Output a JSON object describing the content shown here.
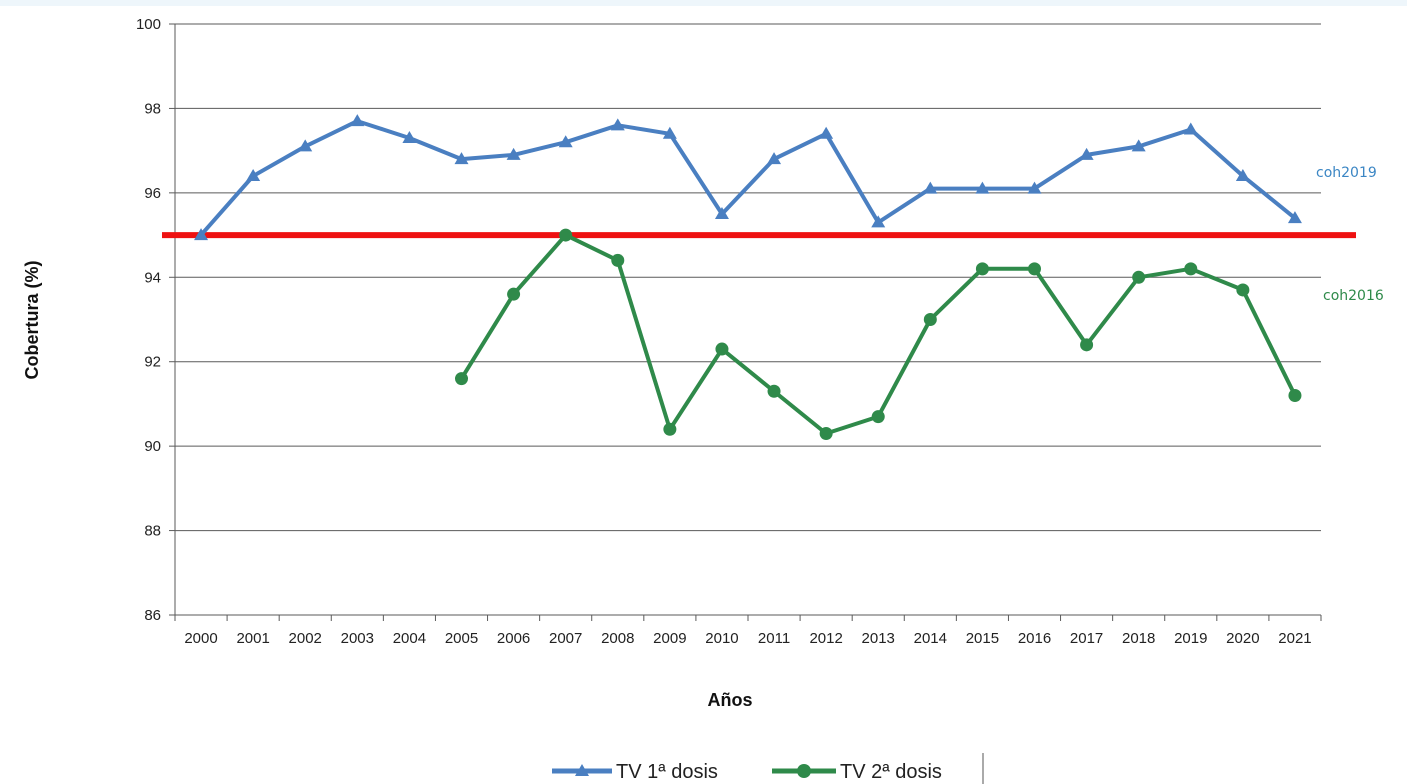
{
  "chart_data": {
    "type": "line",
    "xlabel": "Años",
    "ylabel": "Cobertura (%)",
    "ylim": [
      86,
      100
    ],
    "yticks": [
      86,
      88,
      90,
      92,
      94,
      96,
      98,
      100
    ],
    "categories": [
      "2000",
      "2001",
      "2002",
      "2003",
      "2004",
      "2005",
      "2006",
      "2007",
      "2008",
      "2009",
      "2010",
      "2011",
      "2012",
      "2013",
      "2014",
      "2015",
      "2016",
      "2017",
      "2018",
      "2019",
      "2020",
      "2021"
    ],
    "series": [
      {
        "name": "TV 1ª dosis",
        "color": "#4a7fc1",
        "marker": "triangle",
        "values": [
          95.0,
          96.4,
          97.1,
          97.7,
          97.3,
          96.8,
          96.9,
          97.2,
          97.6,
          97.4,
          95.5,
          96.8,
          97.4,
          95.3,
          96.1,
          96.1,
          96.1,
          96.9,
          97.1,
          97.5,
          96.4,
          95.4
        ]
      },
      {
        "name": "TV 2ª dosis",
        "color": "#2f8a4a",
        "marker": "circle",
        "values": [
          null,
          null,
          null,
          null,
          null,
          91.6,
          93.6,
          95.0,
          94.4,
          90.4,
          92.3,
          91.3,
          90.3,
          90.7,
          93.0,
          94.2,
          94.2,
          92.4,
          94.0,
          94.2,
          93.7,
          91.2
        ]
      }
    ],
    "reference_line": {
      "value": 95,
      "color": "#ee1111"
    },
    "annotations": [
      {
        "text": "coh2019",
        "color": "#3b86c4",
        "y": 96.5
      },
      {
        "text": "coh2016",
        "color": "#2f8a4a",
        "y": 93.6
      }
    ],
    "grid": true,
    "legend": "bottom-center"
  }
}
